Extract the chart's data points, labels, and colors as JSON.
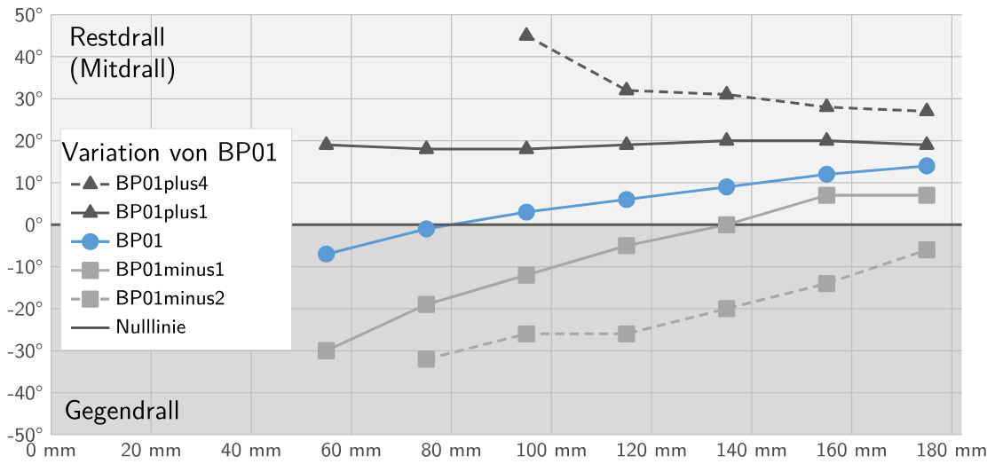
{
  "chart_data": {
    "type": "line",
    "x": [
      55,
      75,
      95,
      115,
      135,
      155,
      175
    ],
    "series": [
      {
        "name": "BP01plus4",
        "color": "#595959",
        "marker": "triangle",
        "line_style": "dashed",
        "x": [
          95,
          115,
          135,
          155,
          175
        ],
        "values": [
          45,
          32,
          31,
          28,
          27
        ]
      },
      {
        "name": "BP01plus1",
        "color": "#595959",
        "marker": "triangle",
        "line_style": "solid",
        "values": [
          19,
          18,
          18,
          19,
          20,
          20,
          19
        ]
      },
      {
        "name": "BP01",
        "color": "#5b9bd5",
        "marker": "circle",
        "line_style": "solid",
        "values": [
          -7,
          -1,
          3,
          6,
          9,
          12,
          14
        ]
      },
      {
        "name": "BP01minus1",
        "color": "#a6a6a6",
        "marker": "square",
        "line_style": "solid",
        "values": [
          -30,
          -19,
          -12,
          -5,
          0,
          7,
          7
        ]
      },
      {
        "name": "BP01minus2",
        "color": "#a6a6a6",
        "marker": "square",
        "line_style": "dashed",
        "x": [
          75,
          95,
          115,
          135,
          155,
          175
        ],
        "values": [
          -32,
          -26,
          -26,
          -20,
          -14,
          -6
        ]
      },
      {
        "name": "Nulllinie",
        "color": "#595959",
        "marker": "none",
        "line_style": "solid",
        "x": [
          0,
          182
        ],
        "values": [
          0,
          0
        ]
      }
    ],
    "legend_title": "Variation von BP01",
    "legend": "left",
    "grid": true,
    "xlim": [
      0,
      182
    ],
    "xticks": [
      {
        "value": 0,
        "label": "0 mm"
      },
      {
        "value": 20,
        "label": "20 mm"
      },
      {
        "value": 40,
        "label": "40 mm"
      },
      {
        "value": 60,
        "label": "60 mm"
      },
      {
        "value": 80,
        "label": "80 mm"
      },
      {
        "value": 100,
        "label": "100 mm"
      },
      {
        "value": 120,
        "label": "120 mm"
      },
      {
        "value": 140,
        "label": "140 mm"
      },
      {
        "value": 160,
        "label": "160 mm"
      },
      {
        "value": 180,
        "label": "180 mm"
      }
    ],
    "ylim": [
      -50,
      50
    ],
    "yticks": [
      {
        "value": -50,
        "label": "-50°"
      },
      {
        "value": -40,
        "label": "-40°"
      },
      {
        "value": -30,
        "label": "-30°"
      },
      {
        "value": -20,
        "label": "-20°"
      },
      {
        "value": -10,
        "label": "-10°"
      },
      {
        "value": 0,
        "label": "0°"
      },
      {
        "value": 10,
        "label": "10°"
      },
      {
        "value": 20,
        "label": "20°"
      },
      {
        "value": 30,
        "label": "30°"
      },
      {
        "value": 40,
        "label": "40°"
      },
      {
        "value": 50,
        "label": "50°"
      }
    ],
    "bands": [
      {
        "axis": "y",
        "from": 0,
        "to": 50,
        "label": "Restdrall (Mitdrall)",
        "color": "#f2f2f2"
      },
      {
        "axis": "y",
        "from": -50,
        "to": 0,
        "label": "Gegendrall",
        "color": "#d9d9d9"
      }
    ]
  }
}
